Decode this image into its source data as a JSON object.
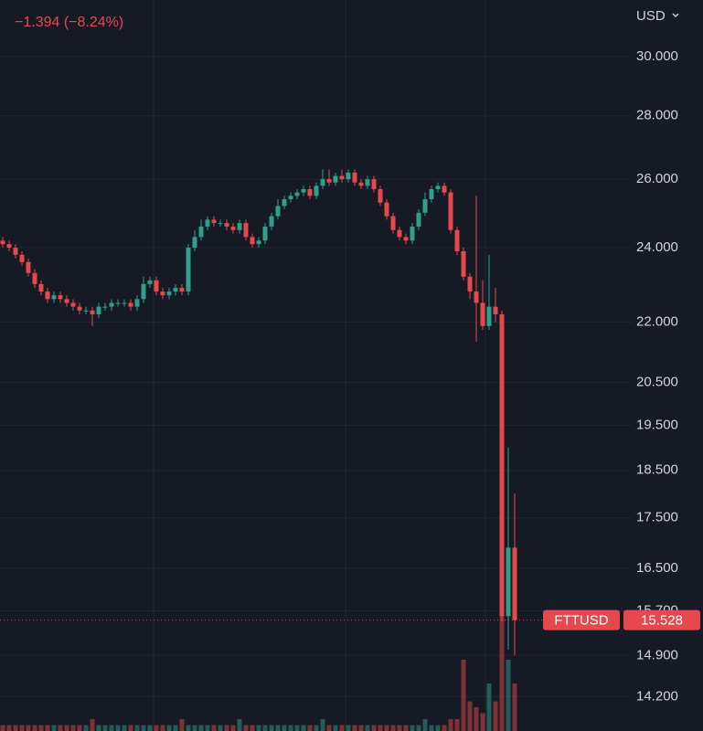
{
  "header": {
    "change": "−1.394 (−8.24%)",
    "currency": "USD"
  },
  "chart_data": {
    "type": "candlestick",
    "symbol": "FTTUSD",
    "last_price": 15.528,
    "log_scale": true,
    "grid": true,
    "up_color": "#2f9e8b",
    "down_color": "#e5484d",
    "ylim": [
      13.64,
      32.06
    ],
    "yticks": [
      {
        "value": 30,
        "label": "30.000"
      },
      {
        "value": 28,
        "label": "28.000"
      },
      {
        "value": 26,
        "label": "26.000"
      },
      {
        "value": 24,
        "label": "24.000"
      },
      {
        "value": 22,
        "label": "22.000"
      },
      {
        "value": 20.5,
        "label": "20.500"
      },
      {
        "value": 19.5,
        "label": "19.500"
      },
      {
        "value": 18.5,
        "label": "18.500"
      },
      {
        "value": 17.5,
        "label": "17.500"
      },
      {
        "value": 16.5,
        "label": "16.500"
      },
      {
        "value": 15.7,
        "label": "15.700"
      },
      {
        "value": 14.9,
        "label": "14.900"
      },
      {
        "value": 14.2,
        "label": "14.200"
      }
    ],
    "open": [
      24.2,
      24.1,
      24.0,
      23.8,
      23.6,
      23.3,
      23.0,
      22.8,
      22.6,
      22.7,
      22.6,
      22.5,
      22.4,
      22.3,
      22.3,
      22.2,
      22.4,
      22.4,
      22.5,
      22.5,
      22.5,
      22.4,
      22.6,
      23.0,
      23.1,
      22.8,
      22.7,
      22.8,
      22.9,
      22.8,
      24.0,
      24.3,
      24.6,
      24.8,
      24.7,
      24.7,
      24.6,
      24.5,
      24.7,
      24.3,
      24.1,
      24.2,
      24.6,
      24.9,
      25.2,
      25.4,
      25.5,
      25.6,
      25.7,
      25.5,
      25.8,
      26.0,
      25.9,
      26.1,
      26.0,
      26.2,
      25.9,
      25.8,
      26.0,
      25.7,
      25.3,
      24.9,
      24.5,
      24.3,
      24.2,
      24.6,
      25.0,
      25.4,
      25.7,
      25.8,
      25.6,
      24.5,
      23.9,
      23.2,
      22.8,
      22.5,
      21.9,
      22.4,
      22.2,
      15.6,
      16.9
    ],
    "high": [
      24.3,
      24.2,
      24.1,
      23.9,
      23.7,
      23.4,
      23.1,
      22.9,
      22.8,
      22.8,
      22.7,
      22.6,
      22.5,
      22.4,
      22.4,
      22.5,
      22.5,
      22.6,
      22.6,
      22.6,
      22.6,
      22.7,
      23.2,
      23.2,
      23.2,
      22.9,
      22.9,
      23.0,
      23.0,
      24.1,
      24.5,
      24.8,
      24.9,
      24.9,
      24.8,
      24.8,
      24.7,
      24.8,
      24.8,
      24.4,
      24.3,
      24.7,
      25.0,
      25.4,
      25.5,
      25.6,
      25.7,
      25.8,
      25.8,
      25.9,
      26.3,
      26.3,
      26.2,
      26.3,
      26.3,
      26.3,
      26.0,
      26.1,
      26.1,
      25.8,
      25.4,
      25.0,
      24.6,
      24.4,
      24.7,
      25.1,
      25.6,
      25.8,
      25.9,
      25.9,
      25.7,
      24.6,
      24.0,
      23.3,
      25.5,
      23.1,
      23.8,
      22.9,
      22.3,
      19.0,
      18.0
    ],
    "low": [
      24.0,
      23.9,
      23.7,
      23.5,
      23.2,
      22.9,
      22.7,
      22.5,
      22.5,
      22.5,
      22.4,
      22.3,
      22.2,
      22.2,
      21.9,
      22.1,
      22.3,
      22.3,
      22.4,
      22.4,
      22.3,
      22.3,
      22.5,
      22.9,
      22.7,
      22.6,
      22.6,
      22.7,
      22.7,
      22.7,
      23.9,
      24.2,
      24.5,
      24.6,
      24.6,
      24.5,
      24.4,
      24.4,
      24.2,
      24.0,
      24.0,
      24.1,
      24.5,
      24.8,
      25.1,
      25.3,
      25.4,
      25.5,
      25.4,
      25.4,
      25.7,
      25.8,
      25.8,
      25.9,
      25.9,
      25.8,
      25.7,
      25.7,
      25.6,
      25.2,
      24.8,
      24.4,
      24.2,
      24.1,
      24.1,
      24.5,
      24.9,
      25.3,
      25.6,
      25.5,
      24.4,
      23.8,
      23.1,
      22.6,
      21.5,
      21.8,
      21.8,
      22.0,
      15.5,
      15.0,
      14.9
    ],
    "close": [
      24.1,
      24.0,
      23.8,
      23.6,
      23.3,
      23.0,
      22.8,
      22.6,
      22.7,
      22.6,
      22.5,
      22.4,
      22.3,
      22.3,
      22.2,
      22.4,
      22.4,
      22.5,
      22.5,
      22.5,
      22.4,
      22.6,
      23.0,
      23.1,
      22.8,
      22.7,
      22.8,
      22.9,
      22.8,
      24.0,
      24.3,
      24.6,
      24.8,
      24.7,
      24.7,
      24.6,
      24.5,
      24.7,
      24.3,
      24.1,
      24.2,
      24.6,
      24.9,
      25.2,
      25.4,
      25.5,
      25.6,
      25.7,
      25.5,
      25.8,
      26.0,
      25.9,
      26.1,
      26.0,
      26.2,
      25.9,
      25.8,
      26.0,
      25.7,
      25.3,
      24.9,
      24.5,
      24.3,
      24.2,
      24.6,
      25.0,
      25.4,
      25.7,
      25.8,
      25.6,
      24.5,
      23.9,
      23.2,
      22.8,
      22.5,
      21.9,
      22.4,
      22.2,
      15.6,
      16.9,
      15.528
    ],
    "volume": [
      1,
      1,
      1,
      1,
      1,
      1,
      1,
      1,
      1,
      1,
      1,
      1,
      1,
      1,
      2,
      1,
      1,
      1,
      1,
      1,
      1,
      1,
      1,
      1,
      1,
      1,
      1,
      1,
      2,
      1,
      1,
      1,
      1,
      1,
      1,
      1,
      1,
      2,
      1,
      1,
      1,
      1,
      1,
      1,
      1,
      1,
      1,
      1,
      1,
      1,
      2,
      1,
      1,
      1,
      1,
      1,
      1,
      1,
      1,
      1,
      1,
      1,
      1,
      1,
      1,
      1,
      2,
      1,
      1,
      1,
      2,
      2,
      12,
      5,
      4,
      3,
      8,
      5,
      20,
      12,
      8
    ]
  }
}
